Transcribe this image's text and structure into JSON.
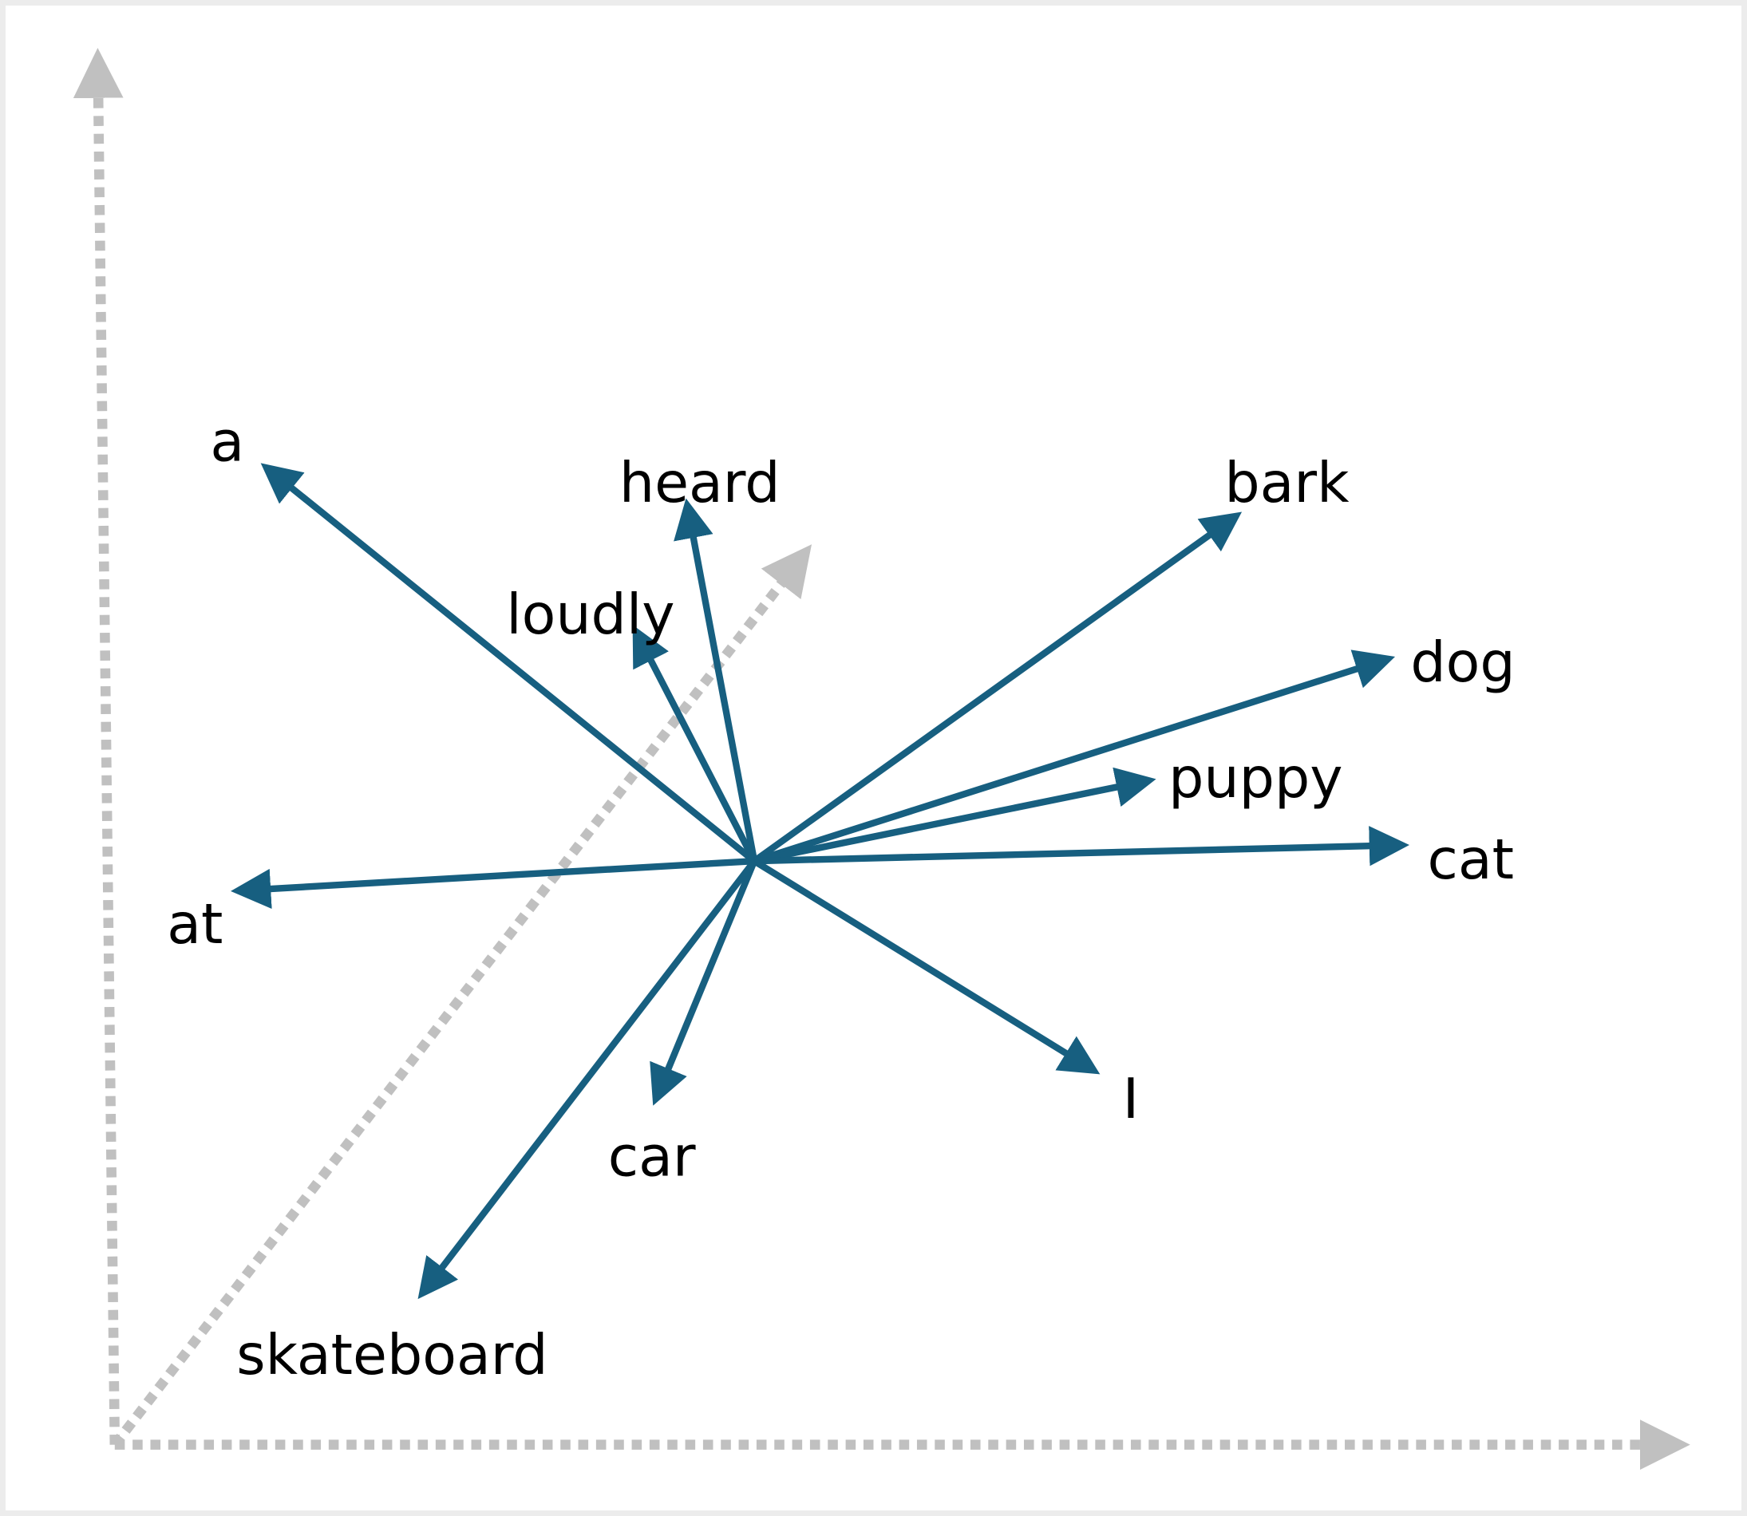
{
  "diagram": {
    "vector_color": "#175f80",
    "axis_color": "#c0c0c0",
    "words": [
      "a",
      "heard",
      "loudly",
      "bark",
      "dog",
      "puppy",
      "cat",
      "at",
      "I",
      "car",
      "skateboard"
    ]
  }
}
